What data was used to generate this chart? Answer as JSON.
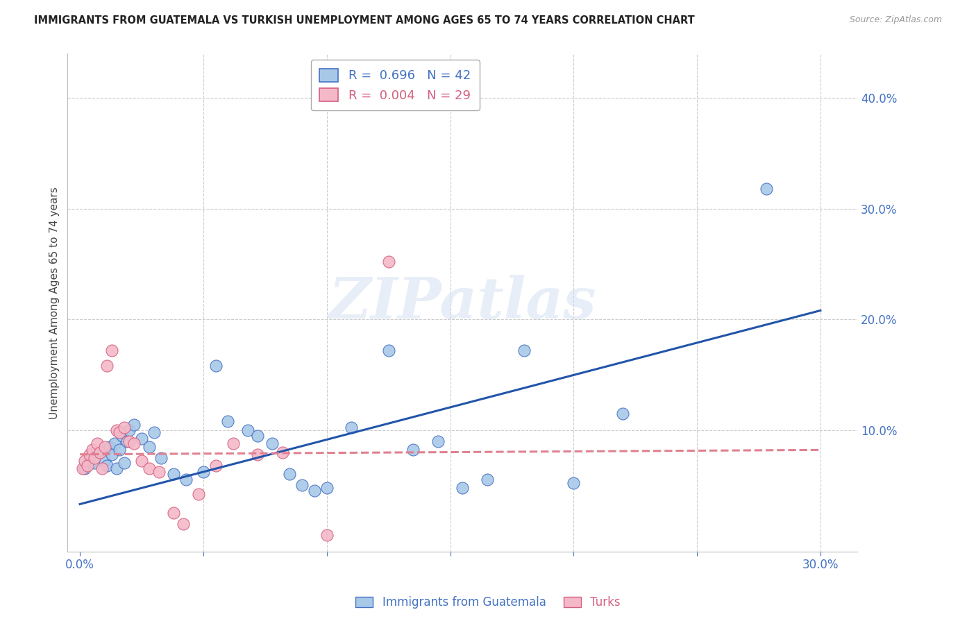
{
  "title": "IMMIGRANTS FROM GUATEMALA VS TURKISH UNEMPLOYMENT AMONG AGES 65 TO 74 YEARS CORRELATION CHART",
  "source": "Source: ZipAtlas.com",
  "ylabel": "Unemployment Among Ages 65 to 74 years",
  "xlim": [
    -0.005,
    0.315
  ],
  "ylim": [
    -0.01,
    0.44
  ],
  "xtick_positions": [
    0.0,
    0.05,
    0.1,
    0.15,
    0.2,
    0.25,
    0.3
  ],
  "xticklabels": [
    "0.0%",
    "",
    "",
    "",
    "",
    "",
    "30.0%"
  ],
  "ytick_positions": [
    0.1,
    0.2,
    0.3,
    0.4
  ],
  "ytick_labels": [
    "10.0%",
    "20.0%",
    "30.0%",
    "40.0%"
  ],
  "blue_color": "#a8c8e8",
  "blue_edge_color": "#4472c4",
  "pink_color": "#f4b8c8",
  "pink_edge_color": "#d46080",
  "blue_line_color": "#2255aa",
  "pink_line_color": "#e08090",
  "watermark_color": "#d0dff0",
  "watermark_text": "ZIPatlas",
  "legend_R_blue": "0.696",
  "legend_N_blue": "42",
  "legend_R_pink": "0.004",
  "legend_N_pink": "29",
  "blue_scatter_x": [
    0.002,
    0.004,
    0.006,
    0.008,
    0.01,
    0.011,
    0.012,
    0.013,
    0.014,
    0.015,
    0.016,
    0.017,
    0.018,
    0.019,
    0.02,
    0.022,
    0.025,
    0.028,
    0.03,
    0.033,
    0.038,
    0.043,
    0.05,
    0.055,
    0.06,
    0.068,
    0.072,
    0.078,
    0.085,
    0.09,
    0.095,
    0.1,
    0.11,
    0.125,
    0.135,
    0.145,
    0.155,
    0.165,
    0.18,
    0.2,
    0.22,
    0.278
  ],
  "blue_scatter_y": [
    0.065,
    0.075,
    0.07,
    0.08,
    0.072,
    0.068,
    0.085,
    0.078,
    0.088,
    0.065,
    0.082,
    0.095,
    0.07,
    0.09,
    0.1,
    0.105,
    0.092,
    0.085,
    0.098,
    0.075,
    0.06,
    0.055,
    0.062,
    0.158,
    0.108,
    0.1,
    0.095,
    0.088,
    0.06,
    0.05,
    0.045,
    0.048,
    0.102,
    0.172,
    0.082,
    0.09,
    0.048,
    0.055,
    0.172,
    0.052,
    0.115,
    0.318
  ],
  "pink_scatter_x": [
    0.001,
    0.002,
    0.003,
    0.004,
    0.005,
    0.006,
    0.007,
    0.008,
    0.009,
    0.01,
    0.011,
    0.013,
    0.015,
    0.016,
    0.018,
    0.02,
    0.022,
    0.025,
    0.028,
    0.032,
    0.038,
    0.042,
    0.048,
    0.055,
    0.062,
    0.072,
    0.082,
    0.1,
    0.125
  ],
  "pink_scatter_y": [
    0.065,
    0.072,
    0.068,
    0.078,
    0.082,
    0.075,
    0.088,
    0.08,
    0.065,
    0.085,
    0.158,
    0.172,
    0.1,
    0.098,
    0.102,
    0.09,
    0.088,
    0.072,
    0.065,
    0.062,
    0.025,
    0.015,
    0.042,
    0.068,
    0.088,
    0.078,
    0.08,
    0.005,
    0.252
  ],
  "blue_line_x": [
    0.0,
    0.3
  ],
  "blue_line_y": [
    0.033,
    0.208
  ],
  "pink_line_x": [
    0.0,
    0.3
  ],
  "pink_line_y": [
    0.078,
    0.082
  ],
  "background_color": "#ffffff",
  "grid_color": "#cccccc"
}
